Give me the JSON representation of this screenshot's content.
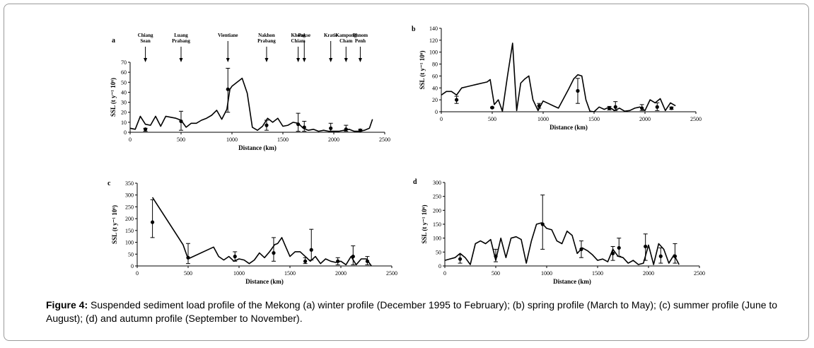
{
  "caption": {
    "label": "Figure 4:",
    "text": " Suspended sediment load profile of the Mekong (a) winter profile (December 1995 to February); (b) spring profile (March to May); (c) summer profile (June to August); (d) and autumn profile (September to November)."
  },
  "stations": [
    {
      "lines": [
        "Chiang",
        "Sean"
      ],
      "x": 150
    },
    {
      "lines": [
        "Luang",
        "Prabang"
      ],
      "x": 500
    },
    {
      "lines": [
        "Vientiane"
      ],
      "x": 960
    },
    {
      "lines": [
        "Nakhon",
        "Prabang"
      ],
      "x": 1340
    },
    {
      "lines": [
        "Khong",
        "Chiam"
      ],
      "x": 1650
    },
    {
      "lines": [
        "Pakse"
      ],
      "x": 1710
    },
    {
      "lines": [
        "Kratie"
      ],
      "x": 1970
    },
    {
      "lines": [
        "Kampong",
        "Cham"
      ],
      "x": 2120
    },
    {
      "lines": [
        "Phnom",
        "Penh"
      ],
      "x": 2260
    }
  ],
  "chart_data": [
    {
      "type": "line",
      "panel": "a",
      "xlabel": "Distance (km)",
      "ylabel": "SSL (t y⁻¹ 10⁶)",
      "xlim": [
        0,
        2500
      ],
      "ylim": [
        0,
        70
      ],
      "xticks": [
        0,
        500,
        1000,
        1500,
        2000,
        2500
      ],
      "yticks": [
        0,
        10,
        20,
        30,
        40,
        50,
        60,
        70
      ],
      "series": [
        {
          "x": [
            0,
            50,
            100,
            150,
            200,
            250,
            300,
            350,
            400,
            450,
            500,
            550,
            600,
            650,
            700,
            750,
            800,
            850,
            900,
            950,
            980,
            1000,
            1050,
            1100,
            1150,
            1200,
            1250,
            1300,
            1350,
            1400,
            1450,
            1500,
            1550,
            1600,
            1650,
            1700,
            1750,
            1800,
            1850,
            1900,
            1950,
            2000,
            2050,
            2100,
            2150,
            2200,
            2250,
            2300,
            2350,
            2380
          ],
          "y": [
            4,
            3,
            16,
            8,
            7,
            16,
            6,
            16,
            15,
            14,
            12,
            5,
            9,
            9,
            12,
            14,
            17,
            22,
            13,
            23,
            43,
            46,
            50,
            54,
            39,
            5,
            2,
            6,
            14,
            10,
            14,
            6,
            7,
            10,
            9,
            4,
            2,
            3,
            1,
            2,
            1,
            1,
            1,
            2,
            3,
            1,
            1,
            2,
            4,
            13
          ]
        }
      ],
      "observations": [
        {
          "x": 150,
          "y": 3,
          "lo": 1,
          "hi": 4
        },
        {
          "x": 500,
          "y": 11,
          "lo": 2,
          "hi": 21
        },
        {
          "x": 960,
          "y": 43,
          "lo": 20,
          "hi": 64
        },
        {
          "x": 1340,
          "y": 7,
          "lo": 2,
          "hi": 12
        },
        {
          "x": 1650,
          "y": 8,
          "lo": 1,
          "hi": 19
        },
        {
          "x": 1710,
          "y": 5,
          "lo": 1,
          "hi": 11
        },
        {
          "x": 1970,
          "y": 4,
          "lo": 1,
          "hi": 9
        },
        {
          "x": 2120,
          "y": 3,
          "lo": 1,
          "hi": 7
        },
        {
          "x": 2260,
          "y": 2,
          "lo": 1,
          "hi": 3
        }
      ]
    },
    {
      "type": "line",
      "panel": "b",
      "xlabel": "Distance (km)",
      "ylabel": "SSL (t y⁻¹ 10⁶)",
      "xlim": [
        0,
        2500
      ],
      "ylim": [
        0,
        140
      ],
      "xticks": [
        0,
        500,
        1000,
        1500,
        2000,
        2500
      ],
      "yticks": [
        0,
        20,
        40,
        60,
        80,
        100,
        120,
        140
      ],
      "series": [
        {
          "x": [
            0,
            50,
            100,
            150,
            200,
            250,
            300,
            350,
            400,
            450,
            480,
            520,
            560,
            600,
            650,
            700,
            740,
            780,
            820,
            860,
            900,
            950,
            1000,
            1050,
            1100,
            1150,
            1200,
            1250,
            1300,
            1340,
            1380,
            1420,
            1460,
            1500,
            1550,
            1600,
            1650,
            1700,
            1750,
            1800,
            1850,
            1900,
            1950,
            2000,
            2050,
            2100,
            2150,
            2200,
            2250,
            2300
          ],
          "y": [
            28,
            34,
            34,
            28,
            40,
            42,
            44,
            46,
            48,
            50,
            54,
            12,
            20,
            1,
            60,
            115,
            2,
            48,
            55,
            60,
            20,
            2,
            18,
            14,
            10,
            6,
            22,
            38,
            55,
            62,
            60,
            20,
            1,
            0,
            8,
            4,
            8,
            2,
            6,
            1,
            2,
            6,
            8,
            2,
            20,
            15,
            22,
            2,
            15,
            10
          ]
        }
      ],
      "observations": [
        {
          "x": 150,
          "y": 20,
          "lo": 14,
          "hi": 26
        },
        {
          "x": 500,
          "y": 7,
          "lo": 6,
          "hi": 8
        },
        {
          "x": 960,
          "y": 10,
          "lo": 6,
          "hi": 14
        },
        {
          "x": 1340,
          "y": 35,
          "lo": 14,
          "hi": 56
        },
        {
          "x": 1650,
          "y": 6,
          "lo": 3,
          "hi": 9
        },
        {
          "x": 1710,
          "y": 8,
          "lo": 2,
          "hi": 17
        },
        {
          "x": 1970,
          "y": 6,
          "lo": 2,
          "hi": 12
        },
        {
          "x": 2120,
          "y": 8,
          "lo": 2,
          "hi": 15
        },
        {
          "x": 2260,
          "y": 6,
          "lo": 4,
          "hi": 8
        }
      ]
    },
    {
      "type": "line",
      "panel": "c",
      "xlabel": "Distance (km)",
      "ylabel": "SSL (t y⁻¹ 10⁶)",
      "xlim": [
        0,
        2500
      ],
      "ylim": [
        0,
        350
      ],
      "xticks": [
        0,
        500,
        1000,
        1500,
        2000,
        2500
      ],
      "yticks": [
        0,
        50,
        100,
        150,
        200,
        250,
        300,
        350
      ],
      "series": [
        {
          "x": [
            150,
            450,
            500,
            750,
            800,
            850,
            900,
            950,
            1000,
            1050,
            1100,
            1150,
            1200,
            1250,
            1300,
            1350,
            1380,
            1420,
            1460,
            1500,
            1550,
            1600,
            1650,
            1700,
            1750,
            1800,
            1850,
            1900,
            1950,
            2000,
            2050,
            2100,
            2150,
            2200,
            2250,
            2300
          ],
          "y": [
            290,
            90,
            30,
            80,
            40,
            25,
            40,
            20,
            30,
            25,
            10,
            25,
            55,
            35,
            60,
            90,
            95,
            120,
            80,
            40,
            60,
            60,
            40,
            20,
            40,
            10,
            30,
            20,
            15,
            20,
            5,
            40,
            5,
            30,
            30,
            0
          ]
        }
      ],
      "observations": [
        {
          "x": 150,
          "y": 185,
          "lo": 120,
          "hi": 280
        },
        {
          "x": 500,
          "y": 35,
          "lo": 10,
          "hi": 95
        },
        {
          "x": 960,
          "y": 40,
          "lo": 20,
          "hi": 60
        },
        {
          "x": 1340,
          "y": 55,
          "lo": 20,
          "hi": 120
        },
        {
          "x": 1650,
          "y": 20,
          "lo": 10,
          "hi": 35
        },
        {
          "x": 1710,
          "y": 68,
          "lo": 25,
          "hi": 155
        },
        {
          "x": 1970,
          "y": 20,
          "lo": 5,
          "hi": 35
        },
        {
          "x": 2120,
          "y": 40,
          "lo": 5,
          "hi": 85
        },
        {
          "x": 2260,
          "y": 20,
          "lo": 5,
          "hi": 40
        }
      ]
    },
    {
      "type": "line",
      "panel": "d",
      "xlabel": "Distance (km)",
      "ylabel": "SSL (t y⁻¹ 10⁶)",
      "xlim": [
        0,
        2500
      ],
      "ylim": [
        0,
        300
      ],
      "xticks": [
        0,
        500,
        1000,
        1500,
        2000,
        2500
      ],
      "yticks": [
        0,
        50,
        100,
        150,
        200,
        250,
        300
      ],
      "series": [
        {
          "x": [
            0,
            100,
            150,
            200,
            250,
            300,
            350,
            400,
            450,
            500,
            550,
            600,
            650,
            700,
            750,
            800,
            850,
            900,
            950,
            1000,
            1050,
            1100,
            1150,
            1200,
            1250,
            1300,
            1350,
            1400,
            1450,
            1500,
            1550,
            1600,
            1650,
            1700,
            1750,
            1800,
            1850,
            1900,
            1950,
            2000,
            2050,
            2100,
            2150,
            2200,
            2250,
            2300
          ],
          "y": [
            20,
            30,
            45,
            30,
            5,
            80,
            90,
            80,
            95,
            20,
            100,
            30,
            100,
            105,
            95,
            10,
            90,
            150,
            155,
            135,
            130,
            90,
            80,
            125,
            110,
            45,
            65,
            55,
            40,
            20,
            25,
            15,
            60,
            35,
            30,
            10,
            20,
            5,
            10,
            75,
            5,
            80,
            60,
            10,
            40,
            5
          ]
        }
      ],
      "observations": [
        {
          "x": 150,
          "y": 25,
          "lo": 10,
          "hi": 40
        },
        {
          "x": 500,
          "y": 35,
          "lo": 15,
          "hi": 60
        },
        {
          "x": 960,
          "y": 150,
          "lo": 60,
          "hi": 255
        },
        {
          "x": 1340,
          "y": 60,
          "lo": 30,
          "hi": 90
        },
        {
          "x": 1650,
          "y": 45,
          "lo": 20,
          "hi": 70
        },
        {
          "x": 1710,
          "y": 65,
          "lo": 35,
          "hi": 100
        },
        {
          "x": 1970,
          "y": 70,
          "lo": 20,
          "hi": 115
        },
        {
          "x": 2120,
          "y": 35,
          "lo": 10,
          "hi": 65
        },
        {
          "x": 2260,
          "y": 35,
          "lo": 10,
          "hi": 80
        }
      ]
    }
  ]
}
